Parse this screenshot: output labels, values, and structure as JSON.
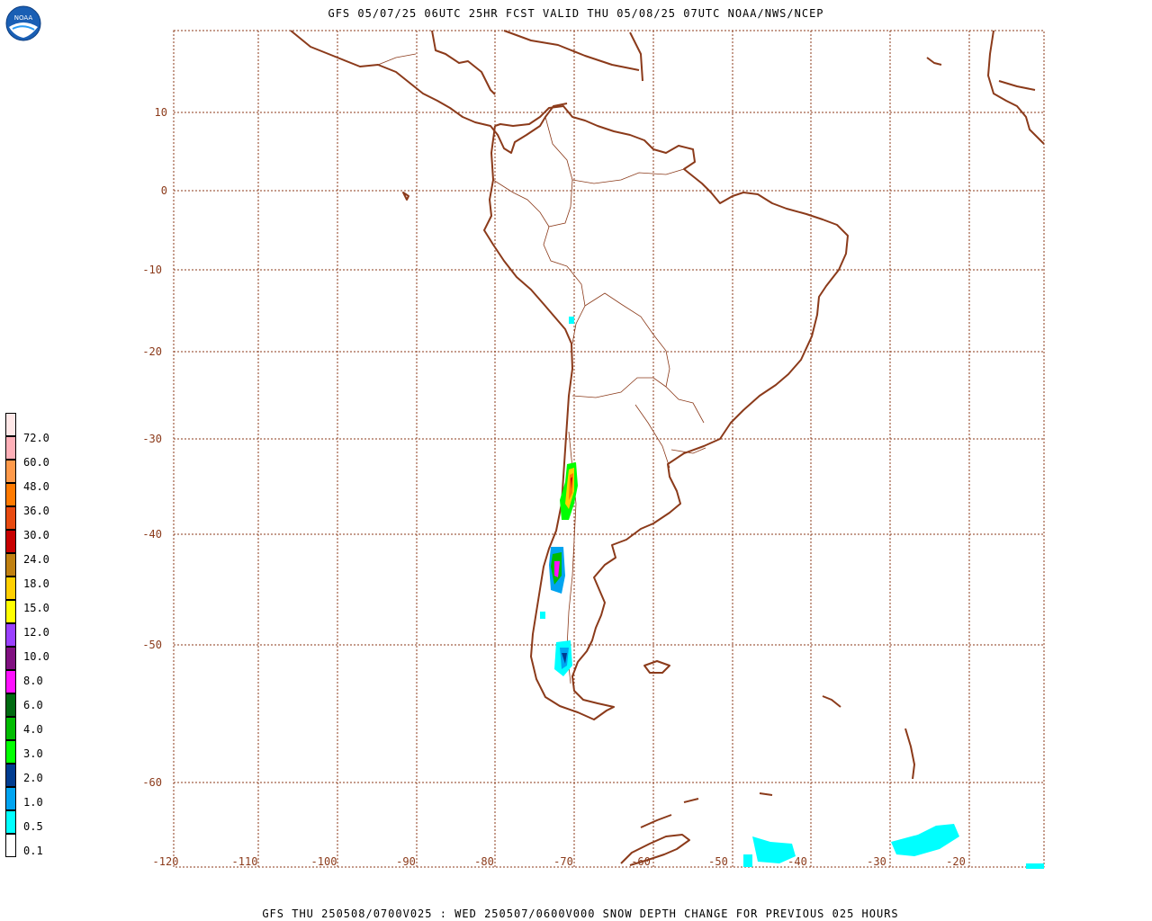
{
  "header": {
    "title": "GFS 05/07/25 06UTC 25HR FCST VALID THU 05/08/25 07UTC NOAA/NWS/NCEP",
    "logo_text": "NOAA",
    "logo_icon": "noaa-logo-icon"
  },
  "footer": {
    "caption": "GFS THU 250508/0700V025 : WED 250507/0600V000 SNOW DEPTH CHANGE FOR PREVIOUS 025 HOURS"
  },
  "map": {
    "projection": "mercator",
    "lon_range": [
      -120,
      -10
    ],
    "lat_range": [
      -64,
      20
    ],
    "coastline_color": "#8b3a1a",
    "grid_color": "#8b3a1a",
    "lat_ticks": [
      "10",
      "0",
      "-10",
      "-20",
      "-30",
      "-40",
      "-50",
      "-60"
    ],
    "lon_ticks": [
      "-120",
      "-110",
      "-100",
      "-90",
      "-80",
      "-70",
      "-60",
      "-50",
      "-40",
      "-30",
      "-20"
    ]
  },
  "legend": {
    "labels": [
      "72.0",
      "60.0",
      "48.0",
      "36.0",
      "30.0",
      "24.0",
      "18.0",
      "15.0",
      "12.0",
      "10.0",
      "8.0",
      "6.0",
      "4.0",
      "3.0",
      "2.0",
      "1.0",
      "0.5",
      "0.1"
    ],
    "colors": [
      "#ffe8e8",
      "#ffb0b8",
      "#ff9a4a",
      "#ff7a00",
      "#e84a10",
      "#c80000",
      "#c08010",
      "#ffd000",
      "#ffff00",
      "#9a40ff",
      "#801080",
      "#ff10ff",
      "#006a10",
      "#00bc00",
      "#00ff00",
      "#003c90",
      "#00a4f0",
      "#00ffff",
      "#ffffff"
    ]
  },
  "snow_areas": [
    {
      "region": "central-andes",
      "lon": -70.2,
      "lat": -35.5,
      "level_max": "48.0"
    },
    {
      "region": "northern-patagonia-andes",
      "lon": -71.5,
      "lat": -43.5,
      "level_max": "6.0"
    },
    {
      "region": "southern-patagonia",
      "lon": -71.8,
      "lat": -51.8,
      "level_max": "1.0"
    },
    {
      "region": "antarctic-peninsula-sea",
      "lon": -40,
      "lat": -63.5,
      "level_max": "0.1"
    }
  ]
}
